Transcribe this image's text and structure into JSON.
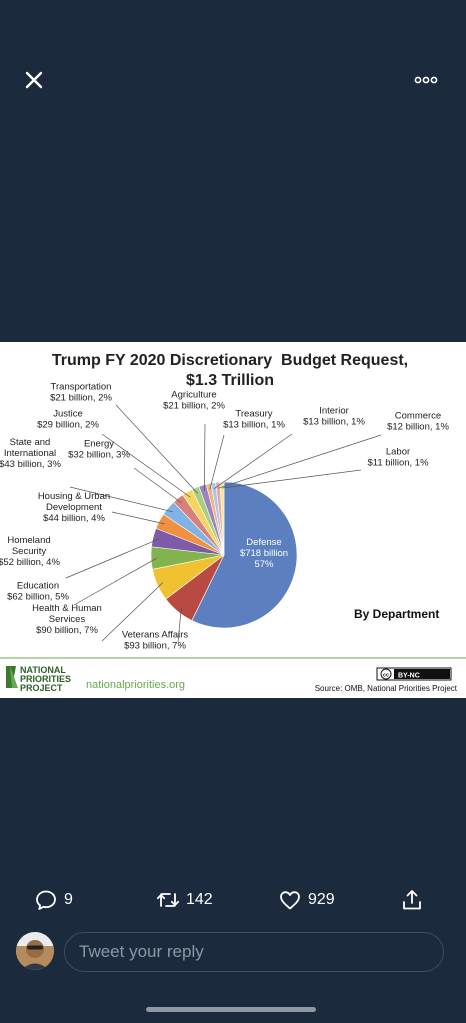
{
  "toolbar": {
    "close_icon": "close-icon",
    "more_icon": "more-horizontal-icon"
  },
  "image": {
    "title_line1": "Trump FY 2020 Discretionary  Budget Request,",
    "title_line2": "$1.3 Trillion",
    "by_department": "By Department",
    "logo_line1": "NATIONAL",
    "logo_line2": "PRIORITIES",
    "logo_line3": "PROJECT",
    "website": "nationalpriorities.org",
    "license_badge": "BY-NC",
    "source": "Source: OMB, National Priorities Project"
  },
  "chart_data": {
    "type": "pie",
    "title": "Trump FY 2020 Discretionary  Budget Request, $1.3 Trillion",
    "subtitle": "By Department",
    "slices": [
      {
        "name": "Defense",
        "value": 718,
        "percent": 57,
        "color": "#5b7fbf",
        "label_lines": [
          "Defense",
          "$718 billion",
          "57%"
        ]
      },
      {
        "name": "Veterans Affairs",
        "value": 93,
        "percent": 7,
        "color": "#b84a42",
        "label_lines": [
          "Veterans Affairs",
          "$93 billion, 7%"
        ]
      },
      {
        "name": "Health & Human Services",
        "value": 90,
        "percent": 7,
        "color": "#f0c131",
        "label_lines": [
          "Health & Human",
          "Services",
          "$90 billion, 7%"
        ]
      },
      {
        "name": "Education",
        "value": 62,
        "percent": 5,
        "color": "#82b34e",
        "label_lines": [
          "Education",
          "$62 billion, 5%"
        ]
      },
      {
        "name": "Homeland Security",
        "value": 52,
        "percent": 4,
        "color": "#7d5ba6",
        "label_lines": [
          "Homeland",
          "Security",
          "$52 billion, 4%"
        ]
      },
      {
        "name": "Housing & Urban Development",
        "value": 44,
        "percent": 4,
        "color": "#f0913f",
        "label_lines": [
          "Housing & Urban",
          "Development",
          "$44 billion, 4%"
        ]
      },
      {
        "name": "State and International",
        "value": 43,
        "percent": 3,
        "color": "#7fb2e5",
        "label_lines": [
          "State and",
          "International",
          "$43 billion, 3%"
        ]
      },
      {
        "name": "Energy",
        "value": 32,
        "percent": 3,
        "color": "#d9807a",
        "label_lines": [
          "Energy",
          "$32 billion, 3%"
        ]
      },
      {
        "name": "Justice",
        "value": 29,
        "percent": 2,
        "color": "#f5d560",
        "label_lines": [
          "Justice",
          "$29 billion, 2%"
        ]
      },
      {
        "name": "Transportation",
        "value": 21,
        "percent": 2,
        "color": "#a9cf7f",
        "label_lines": [
          "Transportation",
          "$21 billion, 2%"
        ]
      },
      {
        "name": "Agriculture",
        "value": 21,
        "percent": 2,
        "color": "#9c84c2",
        "label_lines": [
          "Agriculture",
          "$21 billion, 2%"
        ]
      },
      {
        "name": "Treasury",
        "value": 13,
        "percent": 1,
        "color": "#f5b27a",
        "label_lines": [
          "Treasury",
          "$13 billion, 1%"
        ]
      },
      {
        "name": "Interior",
        "value": 13,
        "percent": 1,
        "color": "#a6c8ea",
        "label_lines": [
          "Interior",
          "$13 billion, 1%"
        ]
      },
      {
        "name": "Commerce",
        "value": 12,
        "percent": 1,
        "color": "#e8a8a4",
        "label_lines": [
          "Commerce",
          "$12 billion, 1%"
        ]
      },
      {
        "name": "Labor",
        "value": 11,
        "percent": 1,
        "color": "#f7e39b",
        "label_lines": [
          "Labor",
          "$11 billion, 1%"
        ]
      }
    ]
  },
  "actions": {
    "reply": {
      "icon": "reply-icon",
      "count": "9"
    },
    "retweet": {
      "icon": "retweet-icon",
      "count": "142"
    },
    "like": {
      "icon": "heart-icon",
      "count": "929"
    },
    "share": {
      "icon": "share-icon"
    }
  },
  "reply_box": {
    "placeholder": "Tweet your reply"
  }
}
